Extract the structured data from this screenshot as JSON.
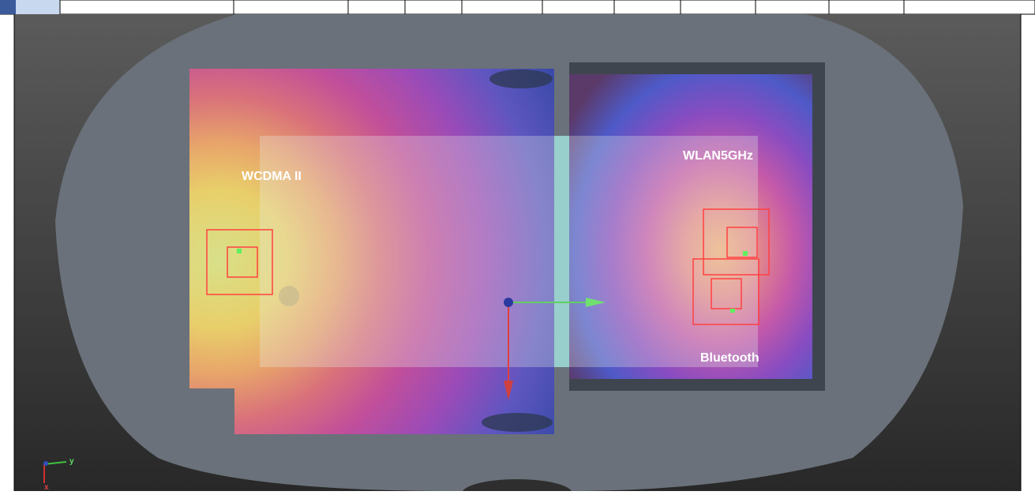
{
  "annotations": [
    "WCDMA II",
    "WLAN5GHz",
    "Bluetooth"
  ],
  "axis_triad": {
    "y": "y",
    "x": "x"
  }
}
